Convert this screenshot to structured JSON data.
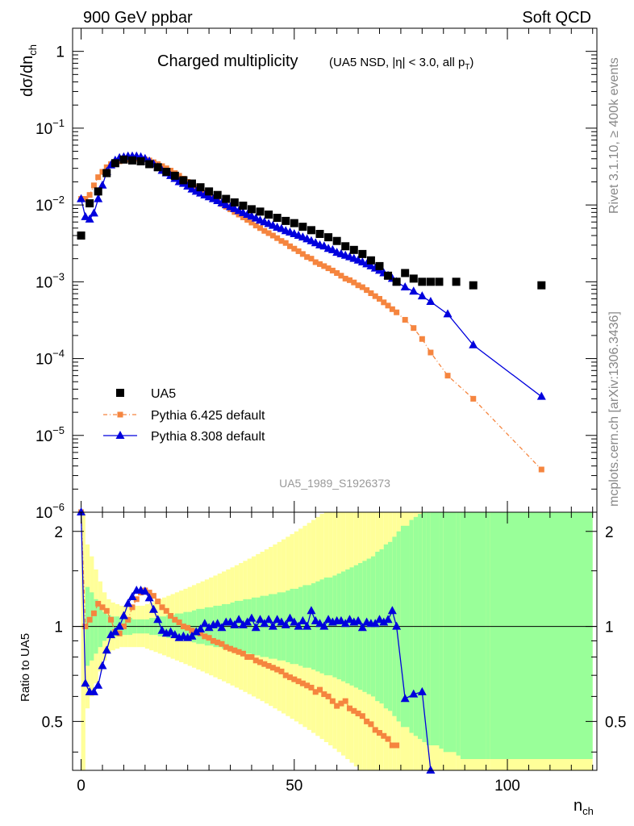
{
  "header": {
    "left": "900 GeV ppbar",
    "right": "Soft QCD",
    "plot_title": "Charged multiplicity",
    "plot_subtitle": "(UA5 NSD, |η| < 3.0, all p",
    "plot_subtitle_sub": "T",
    "plot_subtitle_end": ")",
    "analysis_id": "UA5_1989_S1926373"
  },
  "side_labels": {
    "rivet": "Rivet 3.1.10, ≥ 400k events",
    "source": "mcplots.cern.ch [arXiv:1306.3436]"
  },
  "axis_labels": {
    "y_main_lead": "dσ/dn",
    "y_main_sub": "ch",
    "x_lead": "n",
    "x_sub": "ch",
    "y_ratio": "Ratio to UA5"
  },
  "tick_labels": {
    "x": [
      "0",
      "50",
      "100"
    ],
    "y_main": [
      {
        "base": "1",
        "exp": ""
      },
      {
        "base": "10",
        "exp": "−1"
      },
      {
        "base": "10",
        "exp": "−2"
      },
      {
        "base": "10",
        "exp": "−3"
      },
      {
        "base": "10",
        "exp": "−4"
      },
      {
        "base": "10",
        "exp": "−5"
      },
      {
        "base": "10",
        "exp": "−6"
      }
    ],
    "y_ratio": [
      "2",
      "1",
      "0.5"
    ]
  },
  "legend": [
    {
      "label": "UA5",
      "color": "#000000",
      "marker": "square"
    },
    {
      "label": "Pythia 6.425 default",
      "color": "#f5853f",
      "marker": "square"
    },
    {
      "label": "Pythia 8.308 default",
      "color": "#0000dd",
      "marker": "triangle"
    }
  ],
  "colors": {
    "band_inner": "#99ff99",
    "band_outer": "#ffff99"
  },
  "chart_data": {
    "type": "scatter",
    "x_range": [
      -2,
      121
    ],
    "y_main_range": [
      1e-06,
      2
    ],
    "y_main_scale": "log",
    "y_ratio_range": [
      0.35,
      2.3
    ],
    "y_ratio_scale": "log",
    "data": {
      "x": [
        0,
        2,
        4,
        6,
        8,
        10,
        12,
        14,
        16,
        18,
        20,
        22,
        24,
        26,
        28,
        30,
        32,
        34,
        36,
        38,
        40,
        42,
        44,
        46,
        48,
        50,
        52,
        54,
        56,
        58,
        60,
        62,
        64,
        66,
        68,
        70,
        72,
        74,
        76,
        78,
        80,
        82,
        84,
        88,
        92,
        108
      ],
      "y": [
        0.004,
        0.0105,
        0.015,
        0.026,
        0.035,
        0.039,
        0.038,
        0.037,
        0.034,
        0.031,
        0.027,
        0.024,
        0.021,
        0.019,
        0.017,
        0.015,
        0.0135,
        0.012,
        0.0108,
        0.0098,
        0.0088,
        0.0082,
        0.0075,
        0.0068,
        0.0062,
        0.0058,
        0.0052,
        0.0047,
        0.0042,
        0.0038,
        0.0034,
        0.0029,
        0.0026,
        0.0023,
        0.0019,
        0.0016,
        0.0012,
        0.001,
        0.0013,
        0.0011,
        0.001,
        0.001,
        0.001,
        0.001,
        0.0009,
        0.0009
      ]
    },
    "pythia6": {
      "x": [
        0,
        1,
        2,
        3,
        4,
        5,
        6,
        7,
        8,
        9,
        10,
        11,
        12,
        13,
        14,
        15,
        16,
        17,
        18,
        19,
        20,
        21,
        22,
        23,
        24,
        25,
        26,
        27,
        28,
        29,
        30,
        31,
        32,
        33,
        34,
        35,
        36,
        37,
        38,
        39,
        40,
        41,
        42,
        43,
        44,
        45,
        46,
        47,
        48,
        49,
        50,
        51,
        52,
        53,
        54,
        55,
        56,
        57,
        58,
        59,
        60,
        61,
        62,
        63,
        64,
        65,
        66,
        67,
        68,
        69,
        70,
        71,
        72,
        73,
        74,
        76,
        78,
        80,
        82,
        86,
        92,
        108
      ],
      "y": [
        0.012,
        0.012,
        0.0135,
        0.018,
        0.023,
        0.027,
        0.031,
        0.034,
        0.035,
        0.037,
        0.038,
        0.039,
        0.04,
        0.04,
        0.04,
        0.039,
        0.038,
        0.036,
        0.034,
        0.032,
        0.03,
        0.028,
        0.026,
        0.024,
        0.022,
        0.02,
        0.0185,
        0.017,
        0.0158,
        0.0145,
        0.0133,
        0.0122,
        0.0112,
        0.0103,
        0.0095,
        0.0088,
        0.0081,
        0.0075,
        0.0069,
        0.0064,
        0.0059,
        0.0054,
        0.005,
        0.0046,
        0.0043,
        0.004,
        0.0037,
        0.0034,
        0.0032,
        0.0029,
        0.0027,
        0.0025,
        0.0023,
        0.0021,
        0.002,
        0.0018,
        0.0017,
        0.0016,
        0.0015,
        0.0014,
        0.0013,
        0.0012,
        0.0011,
        0.00105,
        0.00098,
        0.0009,
        0.00085,
        0.00078,
        0.00071,
        0.00065,
        0.0006,
        0.00054,
        0.00049,
        0.00044,
        0.0004,
        0.00032,
        0.00025,
        0.00018,
        0.00012,
        6e-05,
        3e-05,
        3.6e-06
      ]
    },
    "pythia8": {
      "x": [
        0,
        1,
        2,
        3,
        4,
        5,
        6,
        7,
        8,
        9,
        10,
        11,
        12,
        13,
        14,
        15,
        16,
        17,
        18,
        19,
        20,
        21,
        22,
        23,
        24,
        25,
        26,
        27,
        28,
        29,
        30,
        31,
        32,
        33,
        34,
        35,
        36,
        37,
        38,
        39,
        40,
        41,
        42,
        43,
        44,
        45,
        46,
        47,
        48,
        49,
        50,
        51,
        52,
        53,
        54,
        55,
        56,
        57,
        58,
        59,
        60,
        61,
        62,
        63,
        64,
        65,
        66,
        67,
        68,
        69,
        70,
        71,
        72,
        73,
        74,
        76,
        78,
        80,
        82,
        86,
        92,
        108
      ],
      "y": [
        0.012,
        0.007,
        0.0065,
        0.0078,
        0.012,
        0.018,
        0.027,
        0.033,
        0.038,
        0.041,
        0.042,
        0.043,
        0.043,
        0.043,
        0.042,
        0.04,
        0.037,
        0.034,
        0.031,
        0.028,
        0.026,
        0.024,
        0.022,
        0.02,
        0.019,
        0.0175,
        0.016,
        0.015,
        0.0142,
        0.0134,
        0.0127,
        0.012,
        0.0113,
        0.0106,
        0.01,
        0.0094,
        0.0089,
        0.0084,
        0.0079,
        0.0075,
        0.0071,
        0.0067,
        0.0063,
        0.006,
        0.0057,
        0.0054,
        0.0051,
        0.0049,
        0.0046,
        0.0044,
        0.0042,
        0.004,
        0.0038,
        0.0036,
        0.0034,
        0.0032,
        0.003,
        0.0029,
        0.0027,
        0.0026,
        0.0024,
        0.0023,
        0.0022,
        0.0021,
        0.002,
        0.0019,
        0.0018,
        0.0017,
        0.0016,
        0.0015,
        0.0014,
        0.0013,
        0.0012,
        0.0011,
        0.001,
        0.00085,
        0.00075,
        0.00065,
        0.00055,
        0.00038,
        0.00015,
        3.2e-05
      ]
    },
    "ratio": {
      "reference": 1,
      "pythia6": {
        "x": [
          0,
          1,
          2,
          3,
          4,
          5,
          6,
          7,
          8,
          9,
          10,
          11,
          12,
          13,
          14,
          15,
          16,
          17,
          18,
          19,
          20,
          21,
          22,
          23,
          24,
          25,
          26,
          27,
          28,
          29,
          30,
          31,
          32,
          33,
          34,
          35,
          36,
          37,
          38,
          39,
          40,
          41,
          42,
          43,
          44,
          45,
          46,
          47,
          48,
          49,
          50,
          51,
          52,
          53,
          54,
          55,
          56,
          57,
          58,
          59,
          60,
          61,
          62,
          63,
          64,
          65,
          66,
          67,
          68,
          69,
          70,
          71,
          72,
          73,
          74
        ],
        "y": [
          2.3,
          1.0,
          1.05,
          1.1,
          1.18,
          1.15,
          1.12,
          1.05,
          0.96,
          0.95,
          1.0,
          1.05,
          1.15,
          1.22,
          1.28,
          1.3,
          1.28,
          1.25,
          1.2,
          1.15,
          1.12,
          1.08,
          1.05,
          1.03,
          1.0,
          0.99,
          0.97,
          0.96,
          0.95,
          0.93,
          0.92,
          0.9,
          0.89,
          0.88,
          0.86,
          0.85,
          0.84,
          0.83,
          0.82,
          0.8,
          0.8,
          0.78,
          0.77,
          0.76,
          0.75,
          0.74,
          0.73,
          0.72,
          0.7,
          0.69,
          0.68,
          0.67,
          0.66,
          0.65,
          0.64,
          0.62,
          0.63,
          0.61,
          0.6,
          0.58,
          0.56,
          0.57,
          0.58,
          0.55,
          0.54,
          0.53,
          0.52,
          0.5,
          0.49,
          0.47,
          0.46,
          0.45,
          0.44,
          0.42,
          0.42
        ]
      },
      "pythia8": {
        "x": [
          0,
          1,
          2,
          3,
          4,
          5,
          6,
          7,
          8,
          9,
          10,
          11,
          12,
          13,
          14,
          15,
          16,
          17,
          18,
          19,
          20,
          21,
          22,
          23,
          24,
          25,
          26,
          27,
          28,
          29,
          30,
          31,
          32,
          33,
          34,
          35,
          36,
          37,
          38,
          39,
          40,
          41,
          42,
          43,
          44,
          45,
          46,
          47,
          48,
          49,
          50,
          51,
          52,
          53,
          54,
          55,
          56,
          57,
          58,
          59,
          60,
          61,
          62,
          63,
          64,
          65,
          66,
          67,
          68,
          69,
          70,
          71,
          72,
          73,
          74,
          76,
          78,
          80,
          82
        ],
        "y": [
          2.3,
          0.66,
          0.62,
          0.62,
          0.65,
          0.75,
          0.84,
          0.94,
          0.96,
          1.0,
          1.08,
          1.18,
          1.24,
          1.3,
          1.3,
          1.29,
          1.23,
          1.13,
          1.05,
          0.97,
          0.95,
          0.96,
          0.94,
          0.92,
          0.93,
          0.92,
          0.93,
          0.96,
          0.98,
          1.02,
          0.99,
          1.01,
          1.02,
          0.99,
          1.03,
          1.03,
          1.01,
          1.05,
          1.01,
          1.03,
          1.06,
          0.99,
          1.05,
          1.02,
          1.05,
          1.0,
          1.05,
          1.03,
          1.01,
          1.06,
          1.03,
          1.0,
          1.04,
          1.0,
          1.12,
          1.04,
          1.02,
          1.0,
          1.05,
          1.03,
          1.04,
          1.04,
          1.02,
          1.05,
          1.03,
          1.04,
          0.99,
          1.03,
          1.02,
          1.02,
          1.05,
          1.03,
          1.05,
          1.12,
          1.0,
          0.59,
          0.61,
          0.62,
          0.35
        ]
      },
      "band_bins": {
        "x_edges": [
          0,
          1,
          2,
          3,
          4,
          5,
          6,
          7,
          8,
          9,
          10,
          11,
          12,
          13,
          14,
          15,
          16,
          17,
          18,
          19,
          20,
          21,
          22,
          23,
          24,
          25,
          26,
          27,
          28,
          29,
          30,
          31,
          32,
          33,
          34,
          35,
          36,
          37,
          38,
          39,
          40,
          41,
          42,
          43,
          44,
          45,
          46,
          47,
          48,
          49,
          50,
          51,
          52,
          53,
          54,
          55,
          56,
          57,
          58,
          59,
          60,
          61,
          62,
          63,
          64,
          65,
          66,
          67,
          68,
          69,
          70,
          71,
          72,
          73,
          74,
          75,
          77,
          78,
          79,
          80,
          81,
          82,
          84,
          85,
          88,
          89,
          95,
          96,
          120
        ],
        "inner": [
          1.0,
          0.75,
          0.78,
          0.82,
          0.86,
          0.9,
          0.92,
          0.93,
          0.93,
          0.94,
          0.94,
          0.94,
          0.95,
          0.95,
          0.95,
          0.95,
          0.94,
          0.94,
          0.93,
          0.93,
          0.92,
          0.92,
          0.91,
          0.91,
          0.9,
          0.9,
          0.89,
          0.88,
          0.88,
          0.87,
          0.87,
          0.86,
          0.86,
          0.85,
          0.85,
          0.84,
          0.83,
          0.83,
          0.82,
          0.82,
          0.81,
          0.81,
          0.8,
          0.8,
          0.79,
          0.79,
          0.78,
          0.78,
          0.77,
          0.76,
          0.76,
          0.75,
          0.74,
          0.74,
          0.73,
          0.72,
          0.71,
          0.7,
          0.7,
          0.69,
          0.68,
          0.67,
          0.66,
          0.65,
          0.64,
          0.63,
          0.62,
          0.61,
          0.6,
          0.58,
          0.57,
          0.55,
          0.54,
          0.52,
          0.5,
          0.48,
          0.46,
          0.45,
          0.44,
          0.43,
          0.42,
          0.42,
          0.41,
          0.4,
          0.39,
          0.38,
          0.38,
          0.38
        ],
        "outer": [
          0.35,
          0.55,
          0.6,
          0.66,
          0.72,
          0.78,
          0.82,
          0.84,
          0.85,
          0.86,
          0.86,
          0.86,
          0.86,
          0.86,
          0.86,
          0.85,
          0.84,
          0.83,
          0.82,
          0.81,
          0.8,
          0.79,
          0.78,
          0.77,
          0.76,
          0.75,
          0.74,
          0.73,
          0.72,
          0.71,
          0.7,
          0.69,
          0.68,
          0.67,
          0.66,
          0.65,
          0.64,
          0.63,
          0.62,
          0.61,
          0.6,
          0.59,
          0.58,
          0.57,
          0.56,
          0.55,
          0.54,
          0.53,
          0.52,
          0.51,
          0.5,
          0.49,
          0.48,
          0.47,
          0.46,
          0.45,
          0.44,
          0.43,
          0.42,
          0.41,
          0.4,
          0.39,
          0.38,
          0.37,
          0.36,
          0.35,
          0.35,
          0.35,
          0.35,
          0.35,
          0.35,
          0.35,
          0.35,
          0.35,
          0.35,
          0.35,
          0.35,
          0.35,
          0.35,
          0.35,
          0.35,
          0.35,
          0.35,
          0.35,
          0.35,
          0.35,
          0.35,
          0.35
        ]
      }
    }
  }
}
